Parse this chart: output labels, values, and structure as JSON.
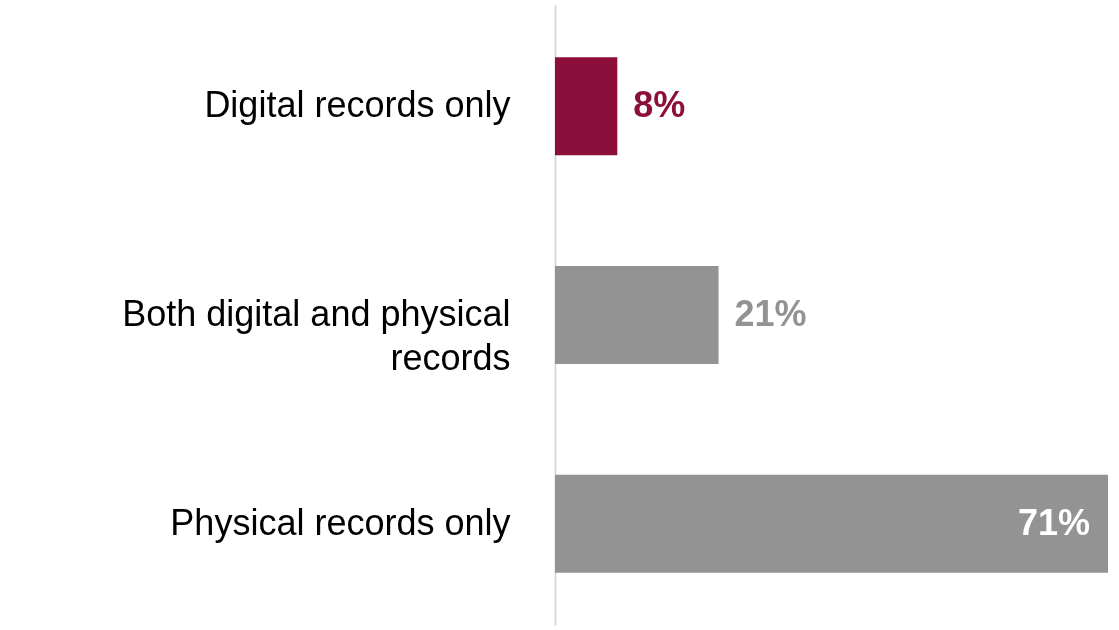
{
  "chart_data": {
    "type": "bar",
    "orientation": "horizontal",
    "categories": [
      "Digital records only",
      "Both digital and physical records",
      "Physical records only"
    ],
    "values": [
      8,
      21,
      71
    ],
    "colors": [
      "#8b0f3a",
      "#939393",
      "#939393"
    ],
    "value_labels": [
      "8%",
      "21%",
      "71%"
    ]
  }
}
